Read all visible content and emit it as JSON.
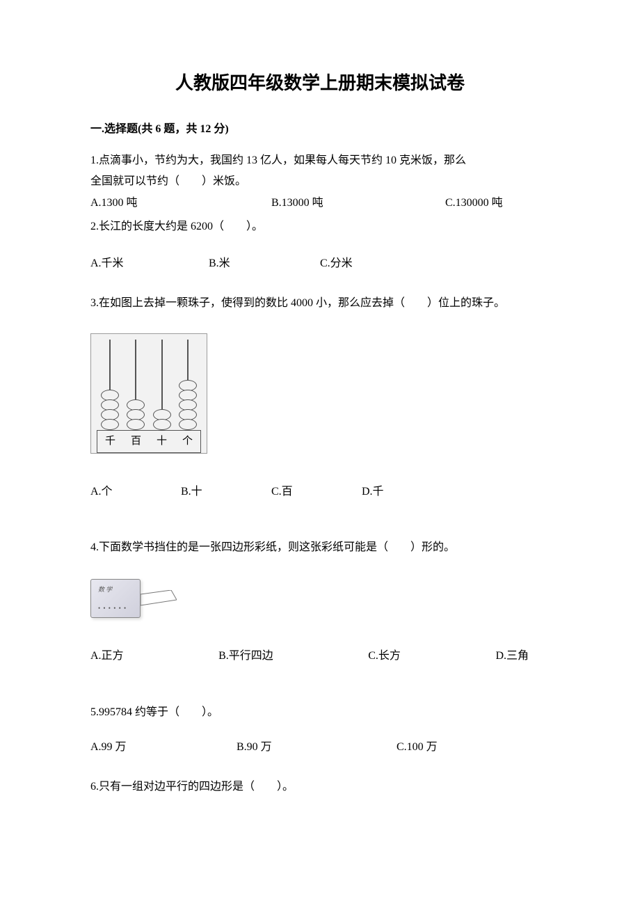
{
  "title": "人教版四年级数学上册期末模拟试卷",
  "section1": {
    "header": "一.选择题(共 6 题，共 12 分)"
  },
  "q1": {
    "text_line1": "1.点滴事小，节约为大，我国约 13 亿人，如果每人每天节约 10 克米饭，那么",
    "text_line2": "全国就可以节约（　　）米饭。",
    "optA": "A.1300 吨",
    "optB": "B.13000 吨",
    "optC": "C.130000 吨"
  },
  "q2": {
    "text": "2.长江的长度大约是 6200（　　）。",
    "optA": "A.千米",
    "optB": "B.米",
    "optC": "C.分米"
  },
  "q3": {
    "text": "3.在如图上去掉一颗珠子，使得到的数比 4000 小，那么应去掉（　　）位上的珠子。",
    "abacus": {
      "columns": [
        {
          "label": "千",
          "beads": 4
        },
        {
          "label": "百",
          "beads": 3
        },
        {
          "label": "十",
          "beads": 2
        },
        {
          "label": "个",
          "beads": 5
        }
      ]
    },
    "optA": "A.个",
    "optB": "B.十",
    "optC": "C.百",
    "optD": "D.千"
  },
  "q4": {
    "text": "4.下面数学书挡住的是一张四边形彩纸，则这张彩纸可能是（　　）形的。",
    "book_label": "数 学",
    "book_dots": "• • • • • •",
    "optA": "A.正方",
    "optB": "B.平行四边",
    "optC": "C.长方",
    "optD": "D.三角"
  },
  "q5": {
    "text": "5.995784 约等于（　　）。",
    "optA": "A.99 万",
    "optB": "B.90 万",
    "optC": "C.100 万"
  },
  "q6": {
    "text": "6.只有一组对边平行的四边形是（　　）。"
  }
}
